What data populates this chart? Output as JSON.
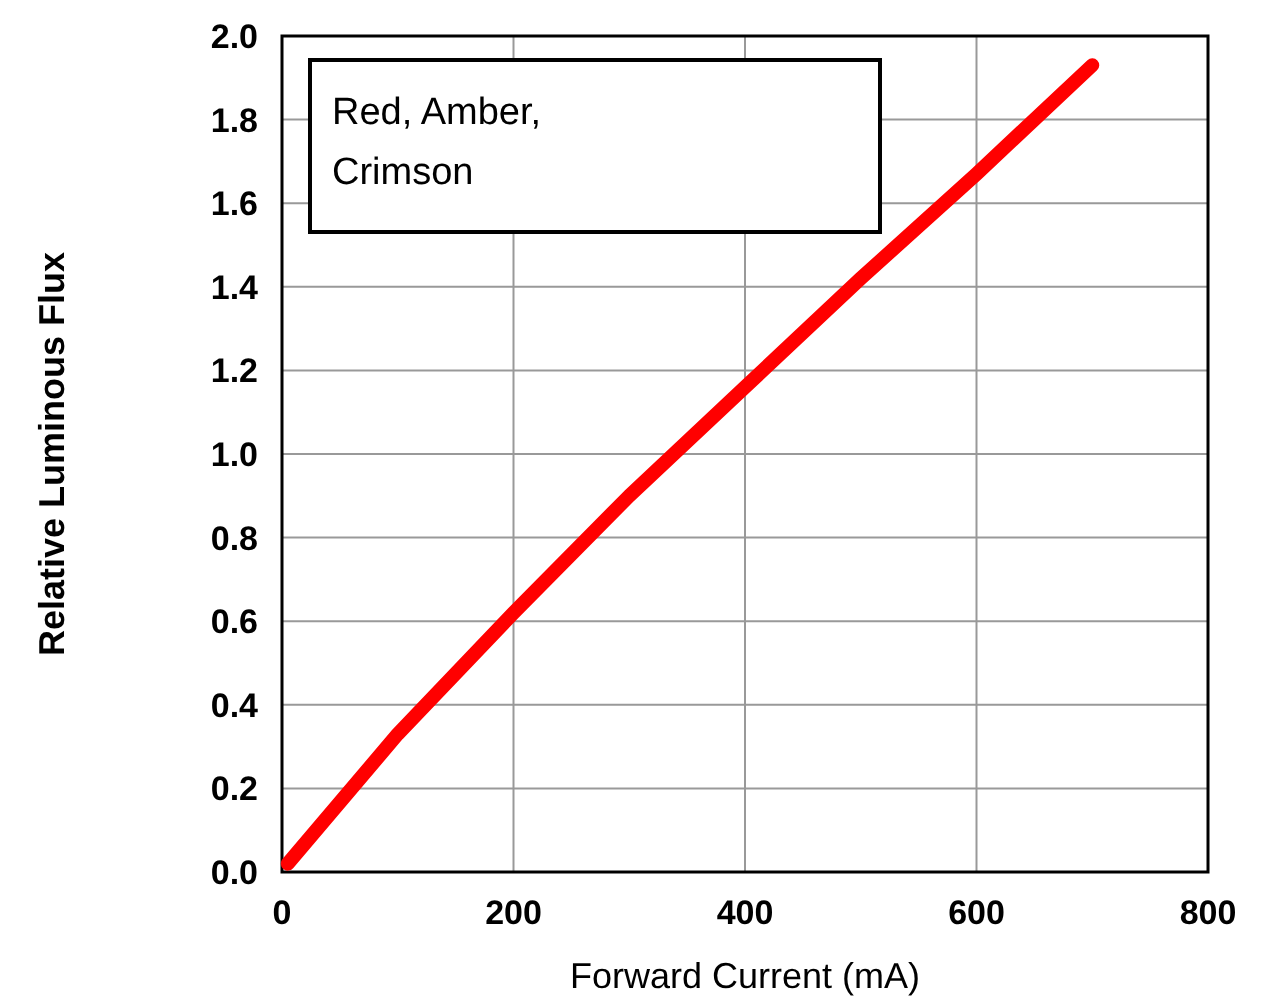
{
  "chart_data": {
    "type": "line",
    "xlabel": "Forward Current (mA)",
    "ylabel": "Relative Luminous Flux",
    "annotations": [
      "Red, Amber, Crimson"
    ],
    "x": [
      5,
      100,
      200,
      300,
      400,
      500,
      600,
      700
    ],
    "series": [
      {
        "color": "#ff0000",
        "values": [
          0.02,
          0.33,
          0.62,
          0.9,
          1.16,
          1.42,
          1.67,
          1.93
        ]
      }
    ],
    "xlim": [
      0,
      800
    ],
    "xticks": [
      0,
      200,
      400,
      600,
      800
    ],
    "ylim": [
      0,
      2
    ],
    "yticks": [
      {
        "value": 0,
        "label": "0.0"
      },
      {
        "value": 0.2,
        "label": "0.2"
      },
      {
        "value": 0.4,
        "label": "0.4"
      },
      {
        "value": 0.6,
        "label": "0.6"
      },
      {
        "value": 0.8,
        "label": "0.8"
      },
      {
        "value": 1,
        "label": "1.0"
      },
      {
        "value": 1.2,
        "label": "1.2"
      },
      {
        "value": 1.4,
        "label": "1.4"
      },
      {
        "value": 1.6,
        "label": "1.6"
      },
      {
        "value": 1.8,
        "label": "1.8"
      },
      {
        "value": 2,
        "label": "2.0"
      }
    ],
    "grid": true,
    "marker": "none",
    "line_style": "solid"
  }
}
